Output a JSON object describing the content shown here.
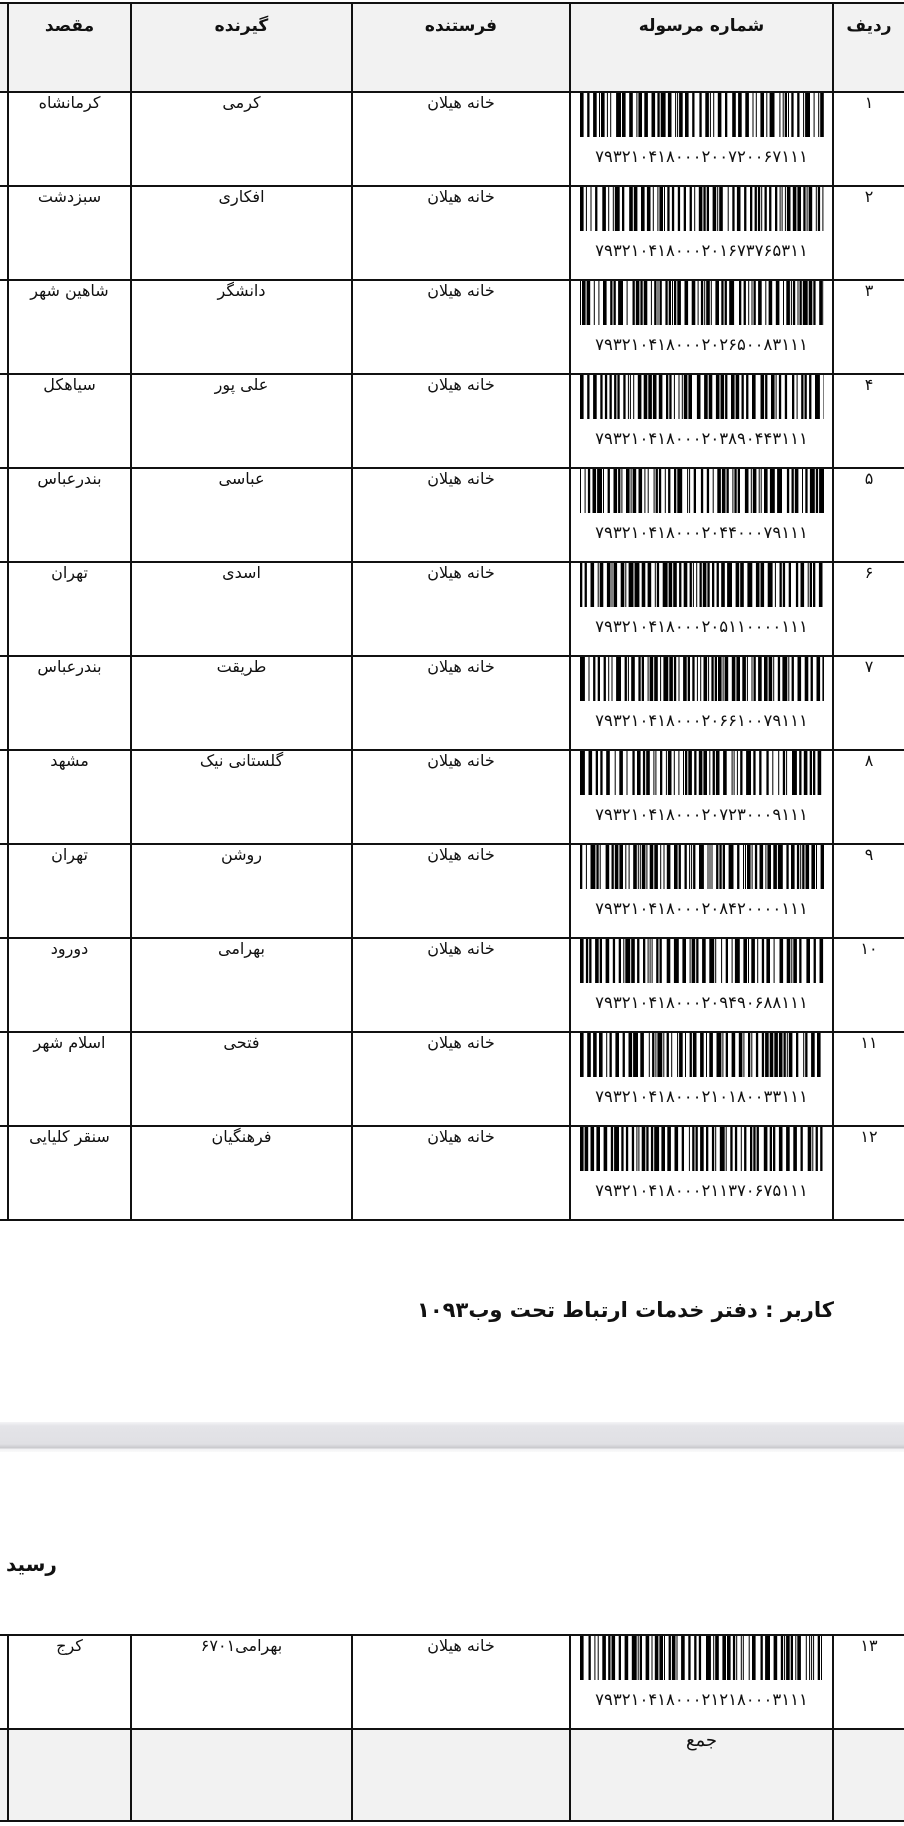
{
  "headers": {
    "row_no": "ردیف",
    "tracking": "شماره مرسوله",
    "sender": "فرستنده",
    "recipient": "گیرنده",
    "destination": "مقصد"
  },
  "rows": [
    {
      "row_no": "۱",
      "tracking": "۷۹۳۲۱۰۴۱۸۰۰۰۲۰۰۷۲۰۰۶۷۱۱۱",
      "sender": "خانه هیلان",
      "recipient": "کرمی",
      "destination": "کرمانشاه"
    },
    {
      "row_no": "۲",
      "tracking": "۷۹۳۲۱۰۴۱۸۰۰۰۲۰۱۶۷۳۷۶۵۳۱۱",
      "sender": "خانه هیلان",
      "recipient": "افکاری",
      "destination": "سبزدشت"
    },
    {
      "row_no": "۳",
      "tracking": "۷۹۳۲۱۰۴۱۸۰۰۰۲۰۲۶۵۰۰۸۳۱۱۱",
      "sender": "خانه هیلان",
      "recipient": "دانشگر",
      "destination": "شاهین شهر"
    },
    {
      "row_no": "۴",
      "tracking": "۷۹۳۲۱۰۴۱۸۰۰۰۲۰۳۸۹۰۴۴۳۱۱۱",
      "sender": "خانه هیلان",
      "recipient": "علی پور",
      "destination": "سیاهکل"
    },
    {
      "row_no": "۵",
      "tracking": "۷۹۳۲۱۰۴۱۸۰۰۰۲۰۴۴۰۰۰۷۹۱۱۱",
      "sender": "خانه هیلان",
      "recipient": "عباسی",
      "destination": "بندرعباس"
    },
    {
      "row_no": "۶",
      "tracking": "۷۹۳۲۱۰۴۱۸۰۰۰۲۰۵۱۱۰۰۰۰۱۱۱",
      "sender": "خانه هیلان",
      "recipient": "اسدی",
      "destination": "تهران"
    },
    {
      "row_no": "۷",
      "tracking": "۷۹۳۲۱۰۴۱۸۰۰۰۲۰۶۶۱۰۰۷۹۱۱۱",
      "sender": "خانه هیلان",
      "recipient": "طریقت",
      "destination": "بندرعباس"
    },
    {
      "row_no": "۸",
      "tracking": "۷۹۳۲۱۰۴۱۸۰۰۰۲۰۷۲۳۰۰۰۹۱۱۱",
      "sender": "خانه هیلان",
      "recipient": "گلستانی نیک",
      "destination": "مشهد"
    },
    {
      "row_no": "۹",
      "tracking": "۷۹۳۲۱۰۴۱۸۰۰۰۲۰۸۴۲۰۰۰۰۱۱۱",
      "sender": "خانه هیلان",
      "recipient": "روشن",
      "destination": "تهران"
    },
    {
      "row_no": "۱۰",
      "tracking": "۷۹۳۲۱۰۴۱۸۰۰۰۲۰۹۴۹۰۶۸۸۱۱۱",
      "sender": "خانه هیلان",
      "recipient": "بهرامی",
      "destination": "دورود"
    },
    {
      "row_no": "۱۱",
      "tracking": "۷۹۳۲۱۰۴۱۸۰۰۰۲۱۰۱۸۰۰۳۳۱۱۱",
      "sender": "خانه هیلان",
      "recipient": "فتحی",
      "destination": "اسلام شهر"
    },
    {
      "row_no": "۱۲",
      "tracking": "۷۹۳۲۱۰۴۱۸۰۰۰۲۱۱۳۷۰۶۷۵۱۱۱",
      "sender": "خانه هیلان",
      "recipient": "فرهنگیان",
      "destination": "سنقر کلیایی"
    }
  ],
  "user_line": "کاربر : دفتر خدمات ارتباط تحت وب۱۰۹۳",
  "receipt_label": "رسید",
  "rows2": [
    {
      "row_no": "۱۳",
      "tracking": "۷۹۳۲۱۰۴۱۸۰۰۰۲۱۲۱۸۰۰۰۳۱۱۱",
      "sender": "خانه هیلان",
      "recipient": "بهرامی۶۷۰۱",
      "destination": "کرج"
    }
  ],
  "total_label": "جمع",
  "colors": {
    "border": "#111111",
    "header_bg": "#f2f2f2",
    "separator": "#e0e0e4"
  }
}
